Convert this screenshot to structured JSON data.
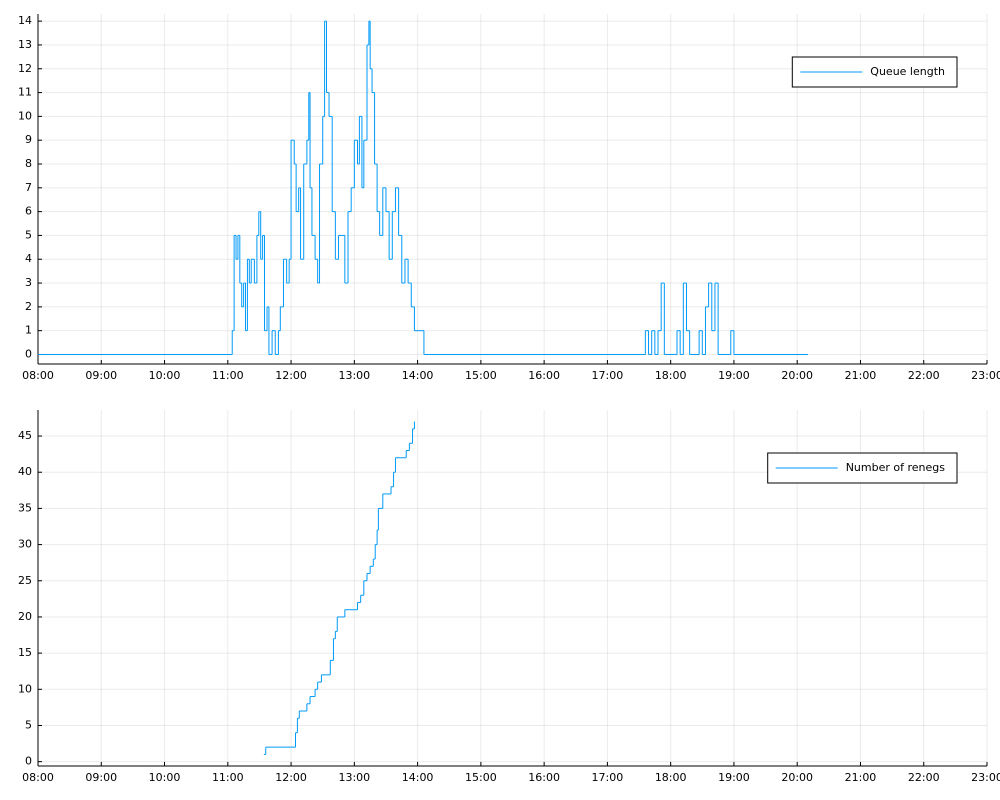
{
  "chart_data": [
    {
      "type": "line",
      "step": true,
      "grid": true,
      "legend": "top-right",
      "xlim": [
        8,
        23
      ],
      "ylim": [
        -0.4,
        14.3
      ],
      "xticks": [
        {
          "value": 8,
          "label": "08:00"
        },
        {
          "value": 9,
          "label": "09:00"
        },
        {
          "value": 10,
          "label": "10:00"
        },
        {
          "value": 11,
          "label": "11:00"
        },
        {
          "value": 12,
          "label": "12:00"
        },
        {
          "value": 13,
          "label": "13:00"
        },
        {
          "value": 14,
          "label": "14:00"
        },
        {
          "value": 15,
          "label": "15:00"
        },
        {
          "value": 16,
          "label": "16:00"
        },
        {
          "value": 17,
          "label": "17:00"
        },
        {
          "value": 18,
          "label": "18:00"
        },
        {
          "value": 19,
          "label": "19:00"
        },
        {
          "value": 20,
          "label": "20:00"
        },
        {
          "value": 21,
          "label": "21:00"
        },
        {
          "value": 22,
          "label": "22:00"
        },
        {
          "value": 23,
          "label": "23:00"
        }
      ],
      "yticks": [
        0,
        1,
        2,
        3,
        4,
        5,
        6,
        7,
        8,
        9,
        10,
        11,
        12,
        13,
        14
      ],
      "x": [
        8.0,
        11.07,
        11.1,
        11.13,
        11.16,
        11.19,
        11.22,
        11.25,
        11.28,
        11.31,
        11.34,
        11.37,
        11.42,
        11.46,
        11.49,
        11.52,
        11.55,
        11.58,
        11.62,
        11.65,
        11.7,
        11.75,
        11.8,
        11.83,
        11.88,
        11.93,
        11.97,
        12.0,
        12.05,
        12.08,
        12.12,
        12.15,
        12.2,
        12.25,
        12.28,
        12.3,
        12.33,
        12.38,
        12.42,
        12.45,
        12.5,
        12.53,
        12.56,
        12.6,
        12.65,
        12.7,
        12.75,
        12.8,
        12.85,
        12.9,
        12.95,
        13.0,
        13.05,
        13.08,
        13.12,
        13.15,
        13.2,
        13.23,
        13.25,
        13.28,
        13.32,
        13.36,
        13.4,
        13.45,
        13.5,
        13.55,
        13.6,
        13.65,
        13.7,
        13.75,
        13.8,
        13.85,
        13.9,
        13.95,
        14.1,
        17.6,
        17.65,
        17.7,
        17.75,
        17.8,
        17.85,
        17.9,
        18.1,
        18.15,
        18.2,
        18.25,
        18.3,
        18.45,
        18.5,
        18.55,
        18.6,
        18.65,
        18.7,
        18.75,
        18.95,
        19.0,
        20.17
      ],
      "series": [
        {
          "name": "Queue length",
          "color": "#009af9",
          "values": [
            0,
            1,
            5,
            4,
            5,
            3,
            2,
            3,
            1,
            4,
            3,
            4,
            3,
            5,
            6,
            4,
            5,
            1,
            2,
            0,
            1,
            0,
            1,
            2,
            4,
            3,
            4,
            9,
            8,
            6,
            7,
            4,
            8,
            9,
            11,
            7,
            5,
            4,
            3,
            8,
            10,
            14,
            11,
            10,
            6,
            4,
            5,
            5,
            3,
            6,
            7,
            9,
            8,
            10,
            7,
            9,
            13,
            14,
            12,
            11,
            8,
            6,
            5,
            7,
            6,
            4,
            6,
            7,
            5,
            3,
            4,
            3,
            2,
            1,
            0,
            1,
            0,
            1,
            0,
            1,
            3,
            0,
            1,
            0,
            3,
            1,
            0,
            1,
            0,
            2,
            3,
            1,
            3,
            0,
            1,
            0,
            0
          ]
        }
      ]
    },
    {
      "type": "line",
      "step": true,
      "grid": true,
      "legend": "top-right",
      "xlim": [
        8,
        23
      ],
      "ylim": [
        -0.6,
        48.6
      ],
      "xticks": [
        {
          "value": 8,
          "label": "08:00"
        },
        {
          "value": 9,
          "label": "09:00"
        },
        {
          "value": 10,
          "label": "10:00"
        },
        {
          "value": 11,
          "label": "11:00"
        },
        {
          "value": 12,
          "label": "12:00"
        },
        {
          "value": 13,
          "label": "13:00"
        },
        {
          "value": 14,
          "label": "14:00"
        },
        {
          "value": 15,
          "label": "15:00"
        },
        {
          "value": 16,
          "label": "16:00"
        },
        {
          "value": 17,
          "label": "17:00"
        },
        {
          "value": 18,
          "label": "18:00"
        },
        {
          "value": 19,
          "label": "19:00"
        },
        {
          "value": 20,
          "label": "20:00"
        },
        {
          "value": 21,
          "label": "21:00"
        },
        {
          "value": 22,
          "label": "22:00"
        },
        {
          "value": 23,
          "label": "23:00"
        }
      ],
      "yticks": [
        0,
        5,
        10,
        15,
        20,
        25,
        30,
        35,
        40,
        45
      ],
      "x": [
        11.57,
        11.6,
        12.07,
        12.1,
        12.13,
        12.25,
        12.3,
        12.38,
        12.42,
        12.48,
        12.62,
        12.67,
        12.7,
        12.73,
        12.85,
        13.05,
        13.1,
        13.15,
        13.2,
        13.25,
        13.3,
        13.33,
        13.36,
        13.38,
        13.45,
        13.58,
        13.62,
        13.65,
        13.82,
        13.87,
        13.92,
        13.95
      ],
      "series": [
        {
          "name": "Number of renegs",
          "color": "#009af9",
          "values": [
            1,
            2,
            4,
            6,
            7,
            8,
            9,
            10,
            11,
            12,
            14,
            17,
            18,
            20,
            21,
            22,
            23,
            25,
            26,
            27,
            28,
            30,
            32,
            35,
            37,
            38,
            40,
            42,
            43,
            44,
            46,
            47
          ]
        }
      ]
    }
  ]
}
